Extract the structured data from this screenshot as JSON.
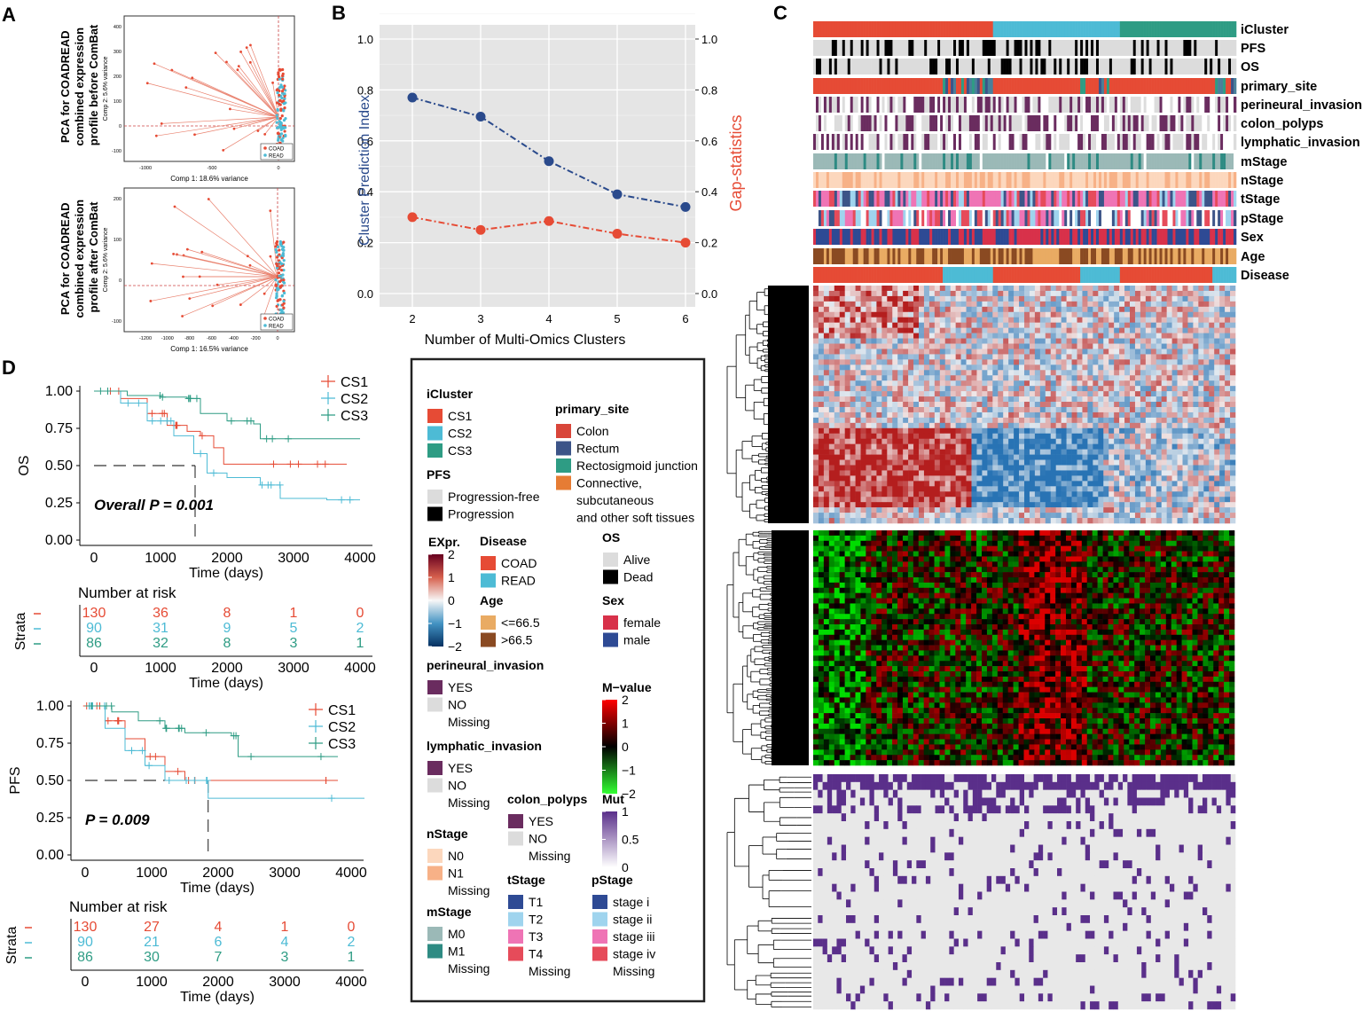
{
  "panels": {
    "A": "A",
    "B": "B",
    "C": "C",
    "D": "D"
  },
  "colors": {
    "cs1": "#e64b35",
    "cs2": "#4dbbd5",
    "cs3": "#2e9c84",
    "blue_line": "#2a4a8c",
    "red_line": "#e64b35",
    "purple": "#6a2c5f",
    "gray": "#dddddd",
    "mut": "#5a2f8a"
  },
  "panel_a": {
    "plots": [
      {
        "title_lines": [
          "PCA for COADREAD",
          "combined expression",
          "profile before ComBat"
        ],
        "xlabel": "Comp 1: 18.6% variance",
        "ylabel": "Comp 2: 5.6% variance",
        "xticks": [
          "-1000",
          "-500",
          "0"
        ],
        "yticks": [
          "400",
          "300",
          "200",
          "100",
          "0",
          "-100"
        ],
        "legend": [
          "COAD",
          "READ"
        ]
      },
      {
        "title_lines": [
          "PCA for COADREAD",
          "combined expression",
          "profile after ComBat"
        ],
        "xlabel": "Comp 1: 16.5% variance",
        "ylabel": "Comp 2: 5.6% variance",
        "xticks": [
          "-1200",
          "-1000",
          "-800",
          "-600",
          "-400",
          "-200",
          "0"
        ],
        "yticks": [
          "200",
          "100",
          "0",
          "-100"
        ],
        "legend": [
          "COAD",
          "READ"
        ]
      }
    ]
  },
  "chart_data": [
    {
      "id": "panel-b",
      "type": "line",
      "x": [
        2,
        3,
        4,
        5,
        6
      ],
      "series": [
        {
          "name": "Cluster Prediction Index",
          "values": [
            0.77,
            0.695,
            0.52,
            0.39,
            0.34
          ]
        },
        {
          "name": "Gap-statistics",
          "values": [
            0.3,
            0.25,
            0.285,
            0.235,
            0.2
          ]
        }
      ],
      "xlabel": "Number of Multi-Omics Clusters",
      "ylabel": "Cluster Prediction Index",
      "ylabel_right": "Gap-statistics",
      "xticks": [
        "2",
        "3",
        "4",
        "5",
        "6"
      ],
      "yticks": [
        "0.0",
        "0.2",
        "0.4",
        "0.6",
        "0.8",
        "1.0"
      ],
      "ylim": [
        0,
        1.0
      ]
    },
    {
      "id": "panel-d-os",
      "type": "line",
      "title": "",
      "ylabel": "OS",
      "xlabel": "Time (days)",
      "xticks": [
        "0",
        "1000",
        "2000",
        "3000",
        "4000"
      ],
      "yticks": [
        "1.00",
        "0.75",
        "0.50",
        "0.25",
        "0.00"
      ],
      "xlim": [
        0,
        4000
      ],
      "ylim": [
        0,
        1.0
      ],
      "annotation": "Overall P = 0.001",
      "legend": [
        "CS1",
        "CS2",
        "CS3"
      ],
      "series": [
        {
          "name": "CS1",
          "x": [
            0,
            400,
            800,
            1100,
            1400,
            1600,
            1800,
            1950,
            2200,
            2600,
            3800
          ],
          "values": [
            1.0,
            0.95,
            0.85,
            0.77,
            0.73,
            0.7,
            0.62,
            0.51,
            0.51,
            0.51,
            0.51
          ]
        },
        {
          "name": "CS2",
          "x": [
            0,
            400,
            800,
            1200,
            1500,
            1700,
            2000,
            2500,
            2800,
            3500,
            4000
          ],
          "values": [
            1.0,
            0.92,
            0.8,
            0.7,
            0.58,
            0.45,
            0.42,
            0.37,
            0.28,
            0.27,
            0.27
          ]
        },
        {
          "name": "CS3",
          "x": [
            0,
            500,
            1000,
            1400,
            1600,
            2000,
            2400,
            2500,
            3000,
            4000
          ],
          "values": [
            1.0,
            0.97,
            0.96,
            0.95,
            0.85,
            0.8,
            0.78,
            0.68,
            0.68,
            0.68
          ]
        }
      ]
    },
    {
      "id": "panel-d-pfs",
      "type": "line",
      "ylabel": "PFS",
      "xlabel": "Time (days)",
      "xticks": [
        "0",
        "1000",
        "2000",
        "3000",
        "4000"
      ],
      "yticks": [
        "1.00",
        "0.75",
        "0.50",
        "0.25",
        "0.00"
      ],
      "xlim": [
        0,
        4000
      ],
      "ylim": [
        0,
        1.0
      ],
      "annotation": "P = 0.009",
      "legend": [
        "CS1",
        "CS2",
        "CS3"
      ],
      "series": [
        {
          "name": "CS1",
          "x": [
            0,
            300,
            600,
            900,
            1200,
            1500,
            2000,
            3800
          ],
          "values": [
            1.0,
            0.9,
            0.78,
            0.66,
            0.56,
            0.5,
            0.5,
            0.5
          ]
        },
        {
          "name": "CS2",
          "x": [
            0,
            300,
            600,
            900,
            1200,
            1800,
            1850,
            4200
          ],
          "values": [
            1.0,
            0.85,
            0.7,
            0.6,
            0.5,
            0.5,
            0.38,
            0.38
          ]
        },
        {
          "name": "CS3",
          "x": [
            0,
            400,
            800,
            1200,
            1500,
            2200,
            2300,
            3800
          ],
          "values": [
            1.0,
            0.96,
            0.9,
            0.85,
            0.82,
            0.8,
            0.66,
            0.66
          ]
        }
      ]
    }
  ],
  "panel_b_legend": {
    "y_left": "Cluster Prediction Index",
    "y_right": "Gap-statistics"
  },
  "risk_tables": [
    {
      "title": "Number at risk",
      "strata_label": "Strata",
      "xlabel": "Time (days)",
      "xticks": [
        "0",
        "1000",
        "2000",
        "3000",
        "4000"
      ],
      "rows": [
        [
          "130",
          "36",
          "8",
          "1",
          "0"
        ],
        [
          "90",
          "31",
          "9",
          "5",
          "2"
        ],
        [
          "86",
          "32",
          "8",
          "3",
          "1"
        ]
      ]
    },
    {
      "title": "Number at risk",
      "strata_label": "Strata",
      "xlabel": "Time (days)",
      "xticks": [
        "0",
        "1000",
        "2000",
        "3000",
        "4000"
      ],
      "rows": [
        [
          "130",
          "27",
          "4",
          "1",
          "0"
        ],
        [
          "90",
          "21",
          "6",
          "4",
          "2"
        ],
        [
          "86",
          "30",
          "7",
          "3",
          "1"
        ]
      ]
    }
  ],
  "heatmap_annotations": [
    "iCluster",
    "PFS",
    "OS",
    "primary_site",
    "perineural_invasion",
    "colon_polyps",
    "lymphatic_invasion",
    "mStage",
    "nStage",
    "tStage",
    "pStage",
    "Sex",
    "Age",
    "Disease"
  ],
  "legend": {
    "icluster": {
      "title": "iCluster",
      "items": [
        "CS1",
        "CS2",
        "CS3"
      ]
    },
    "primary_site": {
      "title": "primary_site",
      "items": [
        "Colon",
        "Rectum",
        "Rectosigmoid junction",
        "Connective,",
        "subcutaneous",
        "and other soft tissues"
      ]
    },
    "pfs": {
      "title": "PFS",
      "items": [
        "Progression-free",
        "Progression"
      ]
    },
    "expr": {
      "title": "EXpr.",
      "ticks": [
        "2",
        "1",
        "0",
        "−1",
        "−2"
      ]
    },
    "disease": {
      "title": "Disease",
      "items": [
        "COAD",
        "READ"
      ]
    },
    "os": {
      "title": "OS",
      "items": [
        "Alive",
        "Dead"
      ]
    },
    "age": {
      "title": "Age",
      "items": [
        "<=66.5",
        ">66.5"
      ]
    },
    "sex": {
      "title": "Sex",
      "items": [
        "female",
        "male"
      ]
    },
    "perineural": {
      "title": "perineural_invasion",
      "items": [
        "YES",
        "NO",
        "Missing"
      ]
    },
    "mvalue": {
      "title": "M−value",
      "ticks": [
        "2",
        "1",
        "0",
        "−1",
        "−2"
      ]
    },
    "lymphatic": {
      "title": "lymphatic_invasion",
      "items": [
        "YES",
        "NO",
        "Missing"
      ]
    },
    "colon_polyps": {
      "title": "colon_polyps",
      "items": [
        "YES",
        "NO",
        "Missing"
      ]
    },
    "mut": {
      "title": "Mut",
      "ticks": [
        "1",
        "0.5",
        "0"
      ]
    },
    "nstage": {
      "title": "nStage",
      "items": [
        "N0",
        "N1",
        "Missing"
      ]
    },
    "tstage": {
      "title": "tStage",
      "items": [
        "T1",
        "T2",
        "T3",
        "T4",
        "Missing"
      ]
    },
    "pstage": {
      "title": "pStage",
      "items": [
        "stage i",
        "stage ii",
        "stage iii",
        "stage iv",
        "Missing"
      ]
    },
    "mstage": {
      "title": "mStage",
      "items": [
        "M0",
        "M1",
        "Missing"
      ]
    }
  }
}
